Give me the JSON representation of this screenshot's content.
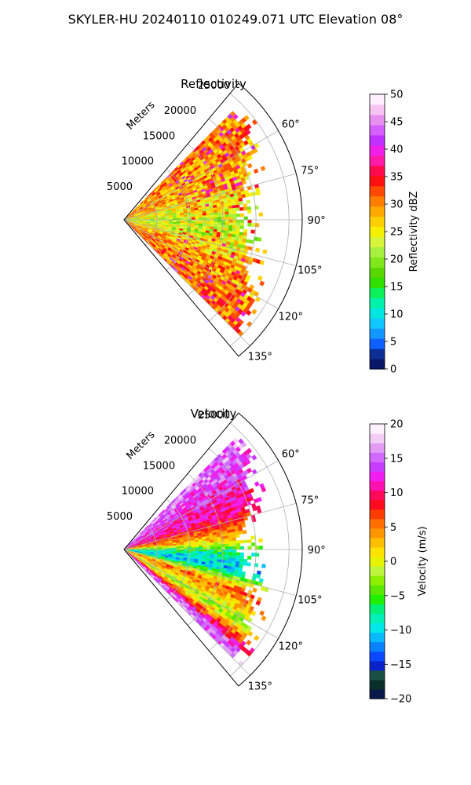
{
  "suptitle": "SKYLER-HU  20240110  010249.071 UTC Elevation 08°",
  "colors": {
    "grid": "#b0b0b0",
    "frame": "#000000",
    "reflectivity_cmap": [
      "#0a1668",
      "#0b2f94",
      "#1060ff",
      "#1296ff",
      "#10c8ff",
      "#00e6e0",
      "#00f2a8",
      "#0cf05a",
      "#30e000",
      "#58d800",
      "#7ee81c",
      "#a8f040",
      "#d6f53a",
      "#f5f000",
      "#ffd000",
      "#ffa800",
      "#ff7e00",
      "#ff4a00",
      "#ff1010",
      "#ff0a4c",
      "#ff1aa8",
      "#f020e8",
      "#c030ff",
      "#d660ff",
      "#e890f0",
      "#f8c4f4",
      "#fff0ff"
    ],
    "velocity_cmap": [
      "#07184a",
      "#0a2f2a",
      "#1a5046",
      "#0a23c8",
      "#0a48ff",
      "#0a82ff",
      "#08baff",
      "#00e8e8",
      "#00f0b8",
      "#00f078",
      "#1ef000",
      "#5ae800",
      "#8cf000",
      "#bef43c",
      "#e6f400",
      "#ffe200",
      "#ffbe00",
      "#ff9600",
      "#ff6e00",
      "#ff3c00",
      "#ff0a1e",
      "#ff0a5a",
      "#ff10b0",
      "#f01ef0",
      "#c83cff",
      "#d26aff",
      "#e29cf4",
      "#f2cef6",
      "#fff2ff"
    ]
  },
  "chart_data": [
    {
      "type": "polar_sector",
      "title": "Reflectivity",
      "radial_label": "Meters",
      "radial_ticks": [
        5000,
        10000,
        15000,
        20000,
        25000
      ],
      "radial_tick_labels": [
        "5000",
        "10000",
        "15000",
        "20000",
        "25000"
      ],
      "r_range": [
        0,
        27000
      ],
      "theta_range_deg": [
        40,
        140
      ],
      "theta_ticks_deg": [
        60,
        75,
        90,
        105,
        120,
        135
      ],
      "theta_tick_labels": [
        "60°",
        "75°",
        "90°",
        "105°",
        "120°",
        "135°"
      ],
      "data_extent": {
        "r_max": 25000,
        "theta_deg": [
          45,
          135
        ]
      },
      "colorbar": {
        "label": "Reflectivity dBZ",
        "vmin": 0,
        "vmax": 50,
        "ticks": [
          0,
          5,
          10,
          15,
          20,
          25,
          30,
          35,
          40,
          45,
          50
        ],
        "tick_labels": [
          "0",
          "5",
          "10",
          "15",
          "20",
          "25",
          "30",
          "35",
          "40",
          "45",
          "50"
        ]
      },
      "grid": true,
      "field_summary": [
        {
          "theta_deg": 50,
          "value": 30
        },
        {
          "theta_deg": 65,
          "value": 29
        },
        {
          "theta_deg": 80,
          "value": 25
        },
        {
          "theta_deg": 90,
          "value": 22
        },
        {
          "theta_deg": 100,
          "value": 23
        },
        {
          "theta_deg": 115,
          "value": 29
        },
        {
          "theta_deg": 130,
          "value": 31
        }
      ]
    },
    {
      "type": "polar_sector",
      "title": "Velocity",
      "radial_label": "Meters",
      "radial_ticks": [
        5000,
        10000,
        15000,
        20000,
        25000
      ],
      "radial_tick_labels": [
        "5000",
        "10000",
        "15000",
        "20000",
        "25000"
      ],
      "r_range": [
        0,
        27000
      ],
      "theta_range_deg": [
        40,
        140
      ],
      "theta_ticks_deg": [
        60,
        75,
        90,
        105,
        120,
        135
      ],
      "theta_tick_labels": [
        "60°",
        "75°",
        "90°",
        "105°",
        "120°",
        "135°"
      ],
      "data_extent": {
        "r_max": 25000,
        "theta_deg": [
          45,
          135
        ]
      },
      "colorbar": {
        "label": "Velocity (m/s)",
        "vmin": -20,
        "vmax": 20,
        "ticks": [
          -20,
          -15,
          -10,
          -5,
          0,
          5,
          10,
          15,
          20
        ],
        "tick_labels": [
          "−20",
          "−15",
          "−10",
          "−5",
          "0",
          "5",
          "10",
          "15",
          "20"
        ]
      },
      "grid": true,
      "field_summary": [
        {
          "theta_deg": 48,
          "value": 15
        },
        {
          "theta_deg": 58,
          "value": 13
        },
        {
          "theta_deg": 72,
          "value": 10
        },
        {
          "theta_deg": 84,
          "value": 3
        },
        {
          "theta_deg": 92,
          "value": -8
        },
        {
          "theta_deg": 100,
          "value": -11
        },
        {
          "theta_deg": 110,
          "value": 6
        },
        {
          "theta_deg": 122,
          "value": -2
        },
        {
          "theta_deg": 132,
          "value": 15
        }
      ]
    }
  ]
}
